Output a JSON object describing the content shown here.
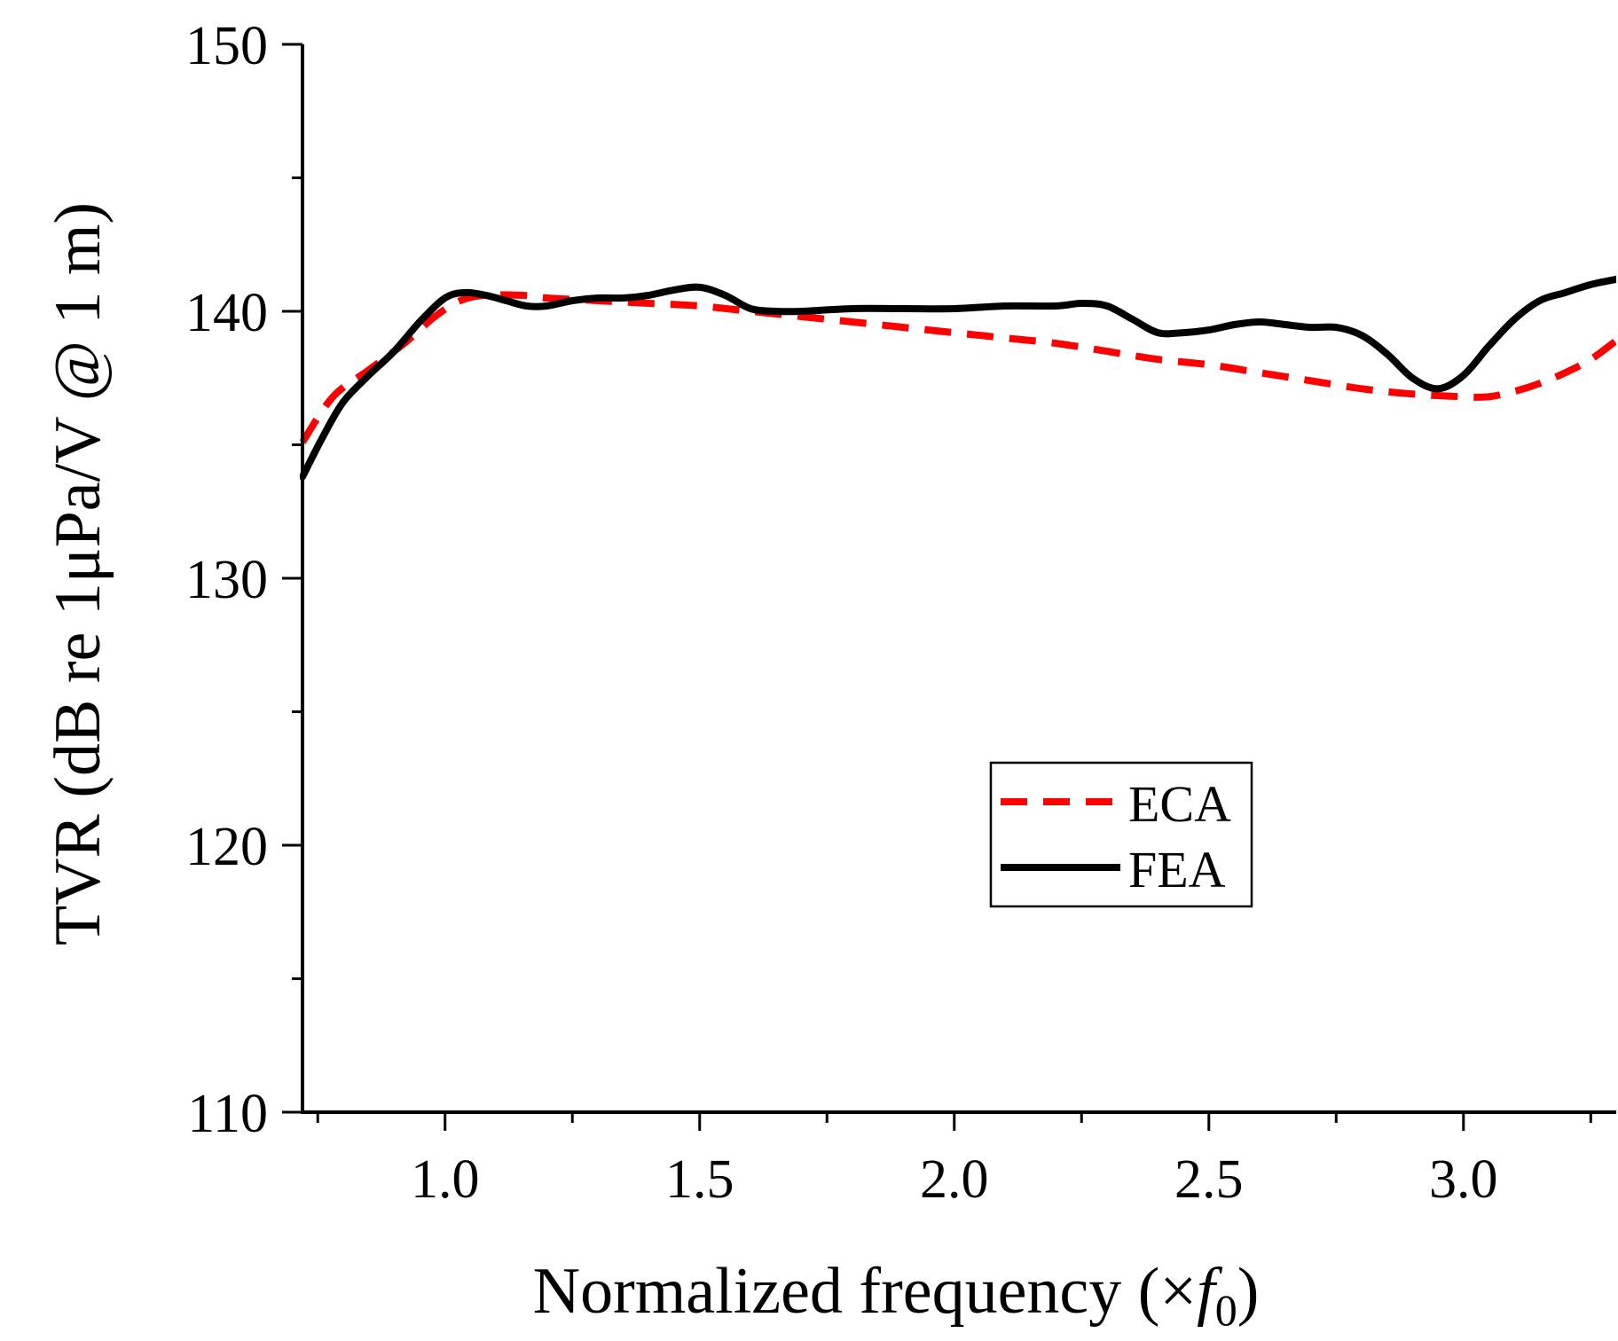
{
  "chart_data": {
    "type": "line",
    "title": "",
    "xlabel": "Normalized frequency (×f0)",
    "xlabel_parts": {
      "main": "Normalized frequency (×",
      "var": "f",
      "sub": "0",
      "close": ")"
    },
    "ylabel": "TVR (dB re 1μPa/V @ 1 m)",
    "xlim": [
      0.72,
      3.3
    ],
    "ylim": [
      110,
      150
    ],
    "x_ticks": [
      1.0,
      1.5,
      2.0,
      2.5,
      3.0
    ],
    "x_tick_labels": [
      "1.0",
      "1.5",
      "2.0",
      "2.5",
      "3.0"
    ],
    "x_minor_ticks": [
      0.75,
      1.25,
      1.75,
      2.25,
      2.75,
      3.25
    ],
    "y_ticks": [
      110,
      120,
      130,
      140,
      150
    ],
    "y_tick_labels": [
      "110",
      "120",
      "130",
      "140",
      "150"
    ],
    "y_minor_ticks": [
      115,
      125,
      135,
      145
    ],
    "grid": false,
    "legend_position": "center-right",
    "series": [
      {
        "name": "ECA",
        "color": "#ff0000",
        "style": "dashed",
        "x": [
          0.72,
          0.78,
          0.85,
          0.92,
          0.98,
          1.03,
          1.08,
          1.15,
          1.2,
          1.3,
          1.4,
          1.5,
          1.6,
          1.7,
          1.8,
          1.9,
          2.0,
          2.1,
          2.2,
          2.3,
          2.4,
          2.5,
          2.6,
          2.7,
          2.8,
          2.9,
          3.0,
          3.05,
          3.1,
          3.15,
          3.2,
          3.25,
          3.3
        ],
        "values": [
          135.1,
          136.8,
          137.8,
          138.8,
          139.8,
          140.4,
          140.6,
          140.6,
          140.5,
          140.4,
          140.3,
          140.2,
          140.0,
          139.8,
          139.6,
          139.4,
          139.2,
          139.0,
          138.8,
          138.5,
          138.2,
          138.0,
          137.7,
          137.4,
          137.1,
          136.9,
          136.8,
          136.8,
          137.0,
          137.3,
          137.7,
          138.2,
          138.9
        ]
      },
      {
        "name": "FEA",
        "color": "#000000",
        "style": "solid",
        "x": [
          0.72,
          0.76,
          0.8,
          0.85,
          0.9,
          0.95,
          1.0,
          1.04,
          1.08,
          1.12,
          1.16,
          1.2,
          1.25,
          1.3,
          1.35,
          1.4,
          1.45,
          1.5,
          1.55,
          1.6,
          1.65,
          1.7,
          1.8,
          1.9,
          2.0,
          2.1,
          2.2,
          2.25,
          2.3,
          2.35,
          2.4,
          2.45,
          2.5,
          2.55,
          2.6,
          2.65,
          2.7,
          2.75,
          2.8,
          2.85,
          2.9,
          2.95,
          3.0,
          3.05,
          3.1,
          3.15,
          3.2,
          3.25,
          3.3
        ],
        "values": [
          133.8,
          135.3,
          136.6,
          137.6,
          138.5,
          139.6,
          140.5,
          140.7,
          140.6,
          140.4,
          140.2,
          140.2,
          140.4,
          140.5,
          140.5,
          140.6,
          140.8,
          140.9,
          140.6,
          140.1,
          140.0,
          140.0,
          140.1,
          140.1,
          140.1,
          140.2,
          140.2,
          140.3,
          140.2,
          139.7,
          139.2,
          139.2,
          139.3,
          139.5,
          139.6,
          139.5,
          139.4,
          139.4,
          139.1,
          138.4,
          137.5,
          137.1,
          137.6,
          138.7,
          139.7,
          140.4,
          140.7,
          141.0,
          141.2
        ]
      }
    ]
  }
}
